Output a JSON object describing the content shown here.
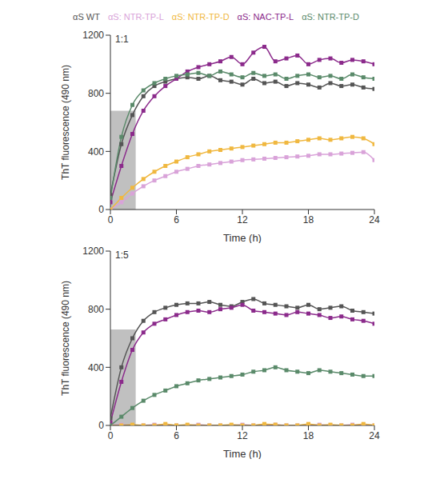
{
  "chart_data": [
    {
      "type": "line",
      "title": "1:1",
      "x_label": "Time (h)",
      "y_label": "ThT fluorescence (490 nm)",
      "x": [
        0,
        1,
        2,
        3,
        4,
        5,
        6,
        7,
        8,
        9,
        10,
        11,
        12,
        13,
        14,
        15,
        16,
        17,
        18,
        19,
        20,
        21,
        22,
        23,
        24
      ],
      "xlim": [
        0,
        24
      ],
      "xticks": [
        0,
        6,
        12,
        18,
        24
      ],
      "ylim": [
        0,
        1200
      ],
      "yticks": [
        0,
        400,
        800,
        1200
      ],
      "legend": "top",
      "marker": "square",
      "shaded_region": {
        "x": [
          0,
          2.3
        ],
        "y": [
          0,
          680
        ]
      },
      "series": [
        {
          "name": "αS WT",
          "color": "#555555",
          "values": [
            100,
            450,
            650,
            780,
            850,
            880,
            900,
            910,
            900,
            920,
            890,
            880,
            860,
            900,
            870,
            880,
            850,
            870,
            860,
            840,
            870,
            850,
            860,
            840,
            830
          ]
        },
        {
          "name": "αS: NTR-TP-L",
          "color": "#d9a3d9",
          "values": [
            0,
            50,
            110,
            160,
            200,
            230,
            260,
            280,
            300,
            310,
            320,
            330,
            340,
            345,
            350,
            355,
            360,
            365,
            370,
            380,
            380,
            385,
            390,
            395,
            340
          ]
        },
        {
          "name": "αS: NTR-TP-D",
          "color": "#f0b840",
          "values": [
            0,
            80,
            150,
            210,
            260,
            300,
            330,
            360,
            380,
            400,
            410,
            420,
            430,
            440,
            450,
            460,
            460,
            470,
            480,
            490,
            480,
            490,
            500,
            490,
            450
          ]
        },
        {
          "name": "αS: NAC-TP-L",
          "color": "#8b2a8b",
          "values": [
            50,
            300,
            520,
            680,
            780,
            850,
            900,
            950,
            980,
            1000,
            1020,
            1050,
            1000,
            1080,
            1120,
            1020,
            1040,
            1060,
            1000,
            1030,
            1040,
            1010,
            1030,
            1020,
            1000
          ]
        },
        {
          "name": "αS: NTR-TP-D",
          "color": "#5a8a6a",
          "values": [
            80,
            500,
            720,
            820,
            870,
            900,
            920,
            930,
            940,
            920,
            950,
            930,
            910,
            940,
            920,
            930,
            900,
            920,
            930,
            910,
            920,
            900,
            930,
            910,
            900
          ]
        }
      ]
    },
    {
      "type": "line",
      "title": "1:5",
      "x_label": "Time (h)",
      "y_label": "ThT fluorescence (490 nm)",
      "x": [
        0,
        1,
        2,
        3,
        4,
        5,
        6,
        7,
        8,
        9,
        10,
        11,
        12,
        13,
        14,
        15,
        16,
        17,
        18,
        19,
        20,
        21,
        22,
        23,
        24
      ],
      "xlim": [
        0,
        24
      ],
      "xticks": [
        0,
        6,
        12,
        18,
        24
      ],
      "ylim": [
        0,
        1200
      ],
      "yticks": [
        0,
        400,
        800,
        1200
      ],
      "marker": "square",
      "shaded_region": {
        "x": [
          0,
          2.3
        ],
        "y": [
          0,
          660
        ]
      },
      "series": [
        {
          "name": "αS WT",
          "color": "#555555",
          "values": [
            50,
            400,
            600,
            720,
            780,
            810,
            830,
            840,
            840,
            850,
            830,
            820,
            850,
            870,
            840,
            830,
            820,
            810,
            830,
            800,
            810,
            820,
            790,
            780,
            770
          ]
        },
        {
          "name": "αS: NTR-TP-L",
          "color": "#d9a3d9",
          "values": [
            0,
            5,
            0,
            0,
            5,
            0,
            0,
            0,
            5,
            0,
            0,
            0,
            5,
            0,
            0,
            5,
            0,
            0,
            0,
            5,
            0,
            0,
            5,
            0,
            0
          ]
        },
        {
          "name": "αS: NTR-TP-D",
          "color": "#f0b840",
          "values": [
            0,
            0,
            5,
            0,
            0,
            10,
            0,
            5,
            0,
            0,
            0,
            5,
            0,
            0,
            10,
            5,
            0,
            0,
            10,
            0,
            5,
            0,
            0,
            10,
            0
          ]
        },
        {
          "name": "αS: NAC-TP-L",
          "color": "#8b2a8b",
          "values": [
            20,
            300,
            520,
            640,
            700,
            730,
            760,
            780,
            790,
            780,
            800,
            810,
            830,
            790,
            780,
            770,
            760,
            780,
            770,
            760,
            740,
            750,
            730,
            720,
            700
          ]
        },
        {
          "name": "αS: NTR-TP-D",
          "color": "#5a8a6a",
          "values": [
            0,
            60,
            120,
            170,
            210,
            240,
            270,
            290,
            310,
            320,
            330,
            340,
            350,
            370,
            380,
            400,
            380,
            370,
            360,
            380,
            370,
            360,
            350,
            340,
            340
          ]
        }
      ]
    }
  ]
}
